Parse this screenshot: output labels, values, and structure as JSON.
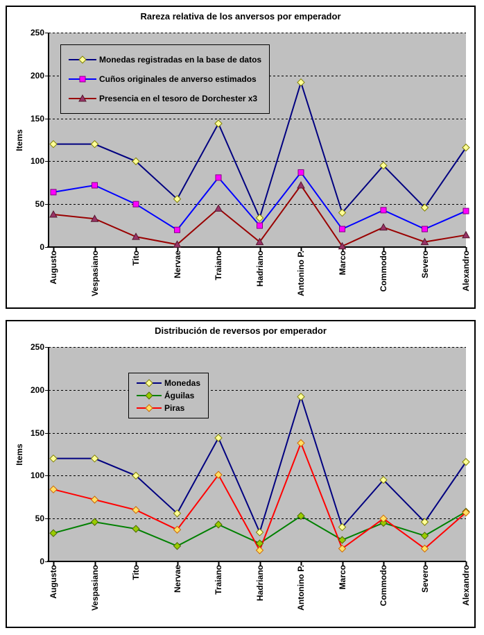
{
  "page": {
    "background": "#FFFFFF",
    "panel_border": "#000000"
  },
  "colors": {
    "plot_bg": "#C0C0C0",
    "grid": "#000000",
    "text": "#000000"
  },
  "charts": [
    {
      "title": "Rareza relativa de los anversos por emperador",
      "y_axis_title": "Items",
      "chart_data": {
        "type": "line",
        "categories": [
          "Augusto",
          "Vespasiano",
          "Tito",
          "Nervae",
          "Traiano",
          "Hadriano",
          "Antonino P.",
          "Marco",
          "Commodo",
          "Severo",
          "Alexandro"
        ],
        "ylim": [
          0,
          250
        ],
        "yticks": [
          0,
          50,
          100,
          150,
          200,
          250
        ],
        "grid": "horizontal-dashed",
        "plot_background": "#C0C0C0",
        "legend_position": "inside-top-left",
        "series": [
          {
            "name": "Monedas registradas en la base de datos",
            "values": [
              120,
              120,
              100,
              56,
              144,
              34,
              192,
              40,
              95,
              46,
              116
            ],
            "line_color": "#000080",
            "marker": "diamond",
            "marker_fill": "#FFFF99",
            "marker_edge": "#808000"
          },
          {
            "name": "Cuños originales de anverso estimados",
            "values": [
              64,
              72,
              50,
              20,
              81,
              25,
              87,
              21,
              43,
              21,
              42
            ],
            "line_color": "#0000FF",
            "marker": "square",
            "marker_fill": "#FF00FF",
            "marker_edge": "#800080"
          },
          {
            "name": "Presencia en el tesoro de Dorchester x3",
            "values": [
              38,
              33,
              12,
              3,
              45,
              6,
              72,
              1,
              23,
              6,
              14
            ],
            "line_color": "#990000",
            "marker": "triangle",
            "marker_fill": "#993366",
            "marker_edge": "#55172F"
          }
        ]
      }
    },
    {
      "title": "Distribución de reversos por emperador",
      "y_axis_title": "Items",
      "chart_data": {
        "type": "line",
        "categories": [
          "Augusto",
          "Vespasiano",
          "Tito",
          "Nervae",
          "Traiano",
          "Hadriano",
          "Antonino P.",
          "Marco",
          "Commodo",
          "Severo",
          "Alexandro"
        ],
        "ylim": [
          0,
          250
        ],
        "yticks": [
          0,
          50,
          100,
          150,
          200,
          250
        ],
        "grid": "horizontal-dashed",
        "plot_background": "#C0C0C0",
        "legend_position": "inside-top-left",
        "series": [
          {
            "name": "Monedas",
            "values": [
              120,
              120,
              100,
              56,
              144,
              34,
              192,
              40,
              95,
              46,
              116
            ],
            "line_color": "#000080",
            "marker": "diamond",
            "marker_fill": "#FFFF99",
            "marker_edge": "#808000"
          },
          {
            "name": "Águilas",
            "values": [
              33,
              46,
              38,
              18,
              43,
              21,
              53,
              25,
              45,
              30,
              58
            ],
            "line_color": "#008000",
            "marker": "diamond",
            "marker_fill": "#99CC00",
            "marker_edge": "#4D6600"
          },
          {
            "name": "Piras",
            "values": [
              84,
              72,
              60,
              37,
              101,
              13,
              138,
              15,
              50,
              15,
              57
            ],
            "line_color": "#FF0000",
            "marker": "diamond",
            "marker_fill": "#FFE066",
            "marker_edge": "#CC6600"
          }
        ]
      }
    }
  ]
}
